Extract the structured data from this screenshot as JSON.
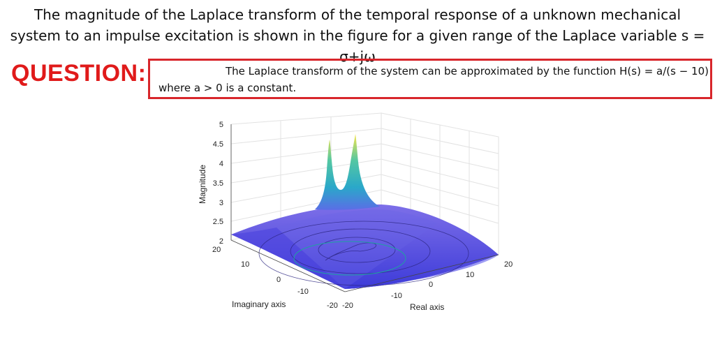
{
  "intro": {
    "line1": "The magnitude of the Laplace transform of the temporal response of a unknown mechanical",
    "line2": "system to an impulse excitation is shown in the figure for a given range of the Laplace variable s = σ+jω"
  },
  "question": {
    "label": "QUESTION:",
    "line1": "The Laplace transform of the system can be approximated by the function H(s) = a/(s − 10)",
    "line2": "where a > 0 is a constant."
  },
  "chart_data": {
    "type": "surface",
    "title": "",
    "zlabel": "Magnitude",
    "xlabel": "Real axis",
    "ylabel": "Imaginary axis",
    "zlim": [
      2,
      5
    ],
    "xlim": [
      -20,
      20
    ],
    "ylim": [
      -20,
      20
    ],
    "z_ticks": [
      "5",
      "4.5",
      "4",
      "3.5",
      "3",
      "2.5",
      "2"
    ],
    "real_ticks": [
      "-20",
      "-10",
      "0",
      "10",
      "20"
    ],
    "imag_ticks": [
      "20",
      "10",
      "0",
      "-10",
      "-20"
    ],
    "grid": true,
    "colormap": "parula",
    "peaks": [
      {
        "sigma": -5,
        "omega": 5,
        "magnitude": 4.9
      },
      {
        "sigma": -5,
        "omega": -5,
        "magnitude": 4.9
      }
    ]
  }
}
